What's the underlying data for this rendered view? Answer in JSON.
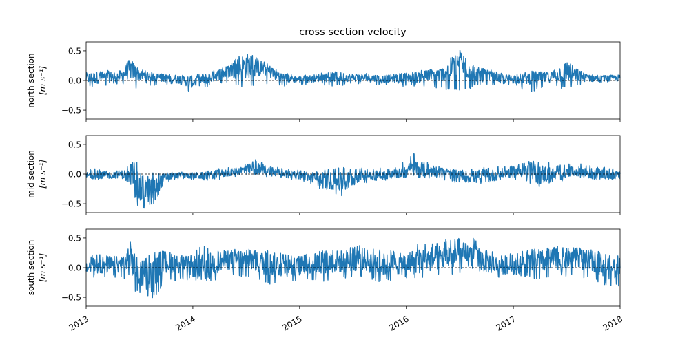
{
  "chart_data": [
    {
      "type": "line",
      "title": "cross section velocity",
      "ylabel": "north section",
      "ylabel_unit": "[m s⁻¹]",
      "ylim": [
        -0.65,
        0.65
      ],
      "yticks": [
        -0.5,
        0.0,
        0.5
      ],
      "ytick_labels": [
        "−0.5",
        "0.0",
        "0.5"
      ],
      "xlim": [
        "2013-01-01",
        "2018-01-01"
      ],
      "color": "#1f77b4",
      "zero_line": "dashed black",
      "series": [
        {
          "x": [
            "2013-01-01",
            "2013-03-01",
            "2013-05-01",
            "2013-06-01",
            "2013-07-01",
            "2013-09-01",
            "2013-11-01",
            "2014-01-01",
            "2014-03-01",
            "2014-05-01",
            "2014-07-01",
            "2014-09-01",
            "2014-11-01",
            "2015-01-01",
            "2015-03-01",
            "2015-05-01",
            "2015-07-01",
            "2015-09-01",
            "2015-11-01",
            "2016-01-01",
            "2016-03-01",
            "2016-05-01",
            "2016-07-01",
            "2016-09-01",
            "2016-11-01",
            "2017-01-01",
            "2017-03-01",
            "2017-05-01",
            "2017-07-01",
            "2017-09-01",
            "2017-11-01",
            "2018-01-01"
          ],
          "values": [
            0.04,
            0.05,
            0.08,
            0.2,
            0.1,
            0.05,
            0.03,
            -0.02,
            0.05,
            0.15,
            0.25,
            0.2,
            0.05,
            0.02,
            0.04,
            0.06,
            0.05,
            0.04,
            0.03,
            0.05,
            0.06,
            0.1,
            0.3,
            0.1,
            0.05,
            0.02,
            0.05,
            0.05,
            0.15,
            0.05,
            0.03,
            0.04
          ],
          "upper": [
            0.15,
            0.18,
            0.2,
            0.3,
            0.2,
            0.12,
            0.1,
            0.05,
            0.15,
            0.25,
            0.5,
            0.3,
            0.15,
            0.08,
            0.12,
            0.15,
            0.12,
            0.12,
            0.1,
            0.15,
            0.18,
            0.2,
            0.48,
            0.25,
            0.15,
            0.1,
            0.12,
            0.15,
            0.35,
            0.12,
            0.1,
            0.1
          ],
          "lower": [
            -0.12,
            -0.1,
            -0.05,
            -0.2,
            -0.1,
            -0.08,
            -0.1,
            -0.25,
            -0.1,
            -0.05,
            -0.15,
            -0.05,
            -0.1,
            -0.08,
            -0.06,
            -0.1,
            -0.08,
            -0.07,
            -0.08,
            -0.1,
            -0.12,
            -0.15,
            -0.2,
            -0.1,
            -0.08,
            -0.1,
            -0.2,
            -0.1,
            -0.15,
            -0.08,
            -0.07,
            -0.06
          ]
        }
      ]
    },
    {
      "type": "line",
      "title": "",
      "ylabel": "mid section",
      "ylabel_unit": "[m s⁻¹]",
      "ylim": [
        -0.65,
        0.65
      ],
      "yticks": [
        -0.5,
        0.0,
        0.5
      ],
      "ytick_labels": [
        "−0.5",
        "0.0",
        "0.5"
      ],
      "xlim": [
        "2013-01-01",
        "2018-01-01"
      ],
      "color": "#1f77b4",
      "zero_line": "dashed black",
      "series": [
        {
          "x": [
            "2013-01-01",
            "2013-03-01",
            "2013-05-01",
            "2013-06-01",
            "2013-07-01",
            "2013-08-15",
            "2013-10-01",
            "2013-12-01",
            "2014-02-01",
            "2014-04-01",
            "2014-06-01",
            "2014-08-01",
            "2014-10-01",
            "2014-12-01",
            "2015-02-01",
            "2015-04-01",
            "2015-06-01",
            "2015-08-01",
            "2015-10-01",
            "2015-12-01",
            "2016-02-01",
            "2016-04-01",
            "2016-06-01",
            "2016-08-01",
            "2016-10-01",
            "2016-12-01",
            "2017-02-01",
            "2017-04-01",
            "2017-06-01",
            "2017-08-01",
            "2017-10-01",
            "2017-12-01",
            "2018-01-01"
          ],
          "values": [
            -0.02,
            -0.02,
            0.0,
            -0.05,
            -0.25,
            -0.25,
            -0.05,
            -0.02,
            -0.03,
            0.0,
            0.05,
            0.1,
            0.05,
            0.0,
            -0.05,
            -0.1,
            -0.15,
            0.0,
            -0.02,
            0.0,
            0.1,
            0.05,
            0.0,
            -0.05,
            -0.05,
            0.02,
            0.05,
            0.0,
            -0.02,
            0.05,
            0.0,
            -0.02,
            -0.02
          ],
          "upper": [
            0.08,
            0.1,
            0.1,
            0.2,
            0.2,
            0.05,
            0.05,
            0.05,
            0.05,
            0.1,
            0.12,
            0.25,
            0.15,
            0.08,
            0.05,
            0.08,
            0.12,
            0.1,
            0.1,
            0.12,
            0.38,
            0.15,
            0.08,
            0.08,
            0.12,
            0.15,
            0.2,
            0.25,
            0.15,
            0.18,
            0.15,
            0.1,
            0.08
          ],
          "lower": [
            -0.08,
            -0.1,
            -0.08,
            -0.2,
            -0.6,
            -0.55,
            -0.15,
            -0.08,
            -0.12,
            -0.1,
            -0.05,
            -0.05,
            -0.05,
            -0.08,
            -0.15,
            -0.3,
            -0.38,
            -0.2,
            -0.12,
            -0.08,
            -0.05,
            -0.12,
            -0.15,
            -0.2,
            -0.2,
            -0.08,
            -0.1,
            -0.25,
            -0.15,
            -0.05,
            -0.12,
            -0.1,
            -0.08
          ]
        }
      ]
    },
    {
      "type": "line",
      "title": "",
      "ylabel": "south section",
      "ylabel_unit": "[m s⁻¹]",
      "ylim": [
        -0.65,
        0.65
      ],
      "yticks": [
        -0.5,
        0.0,
        0.5
      ],
      "ytick_labels": [
        "−0.5",
        "0.0",
        "0.5"
      ],
      "xlim": [
        "2013-01-01",
        "2018-01-01"
      ],
      "xtick_labels": [
        "2013",
        "2014",
        "2015",
        "2016",
        "2017",
        "2018"
      ],
      "color": "#1f77b4",
      "zero_line": "dashed black",
      "series": [
        {
          "x": [
            "2013-01-01",
            "2013-03-01",
            "2013-05-01",
            "2013-06-01",
            "2013-07-01",
            "2013-08-15",
            "2013-10-01",
            "2013-12-01",
            "2014-02-01",
            "2014-04-01",
            "2014-06-01",
            "2014-08-01",
            "2014-10-01",
            "2014-12-01",
            "2015-02-01",
            "2015-04-01",
            "2015-06-01",
            "2015-08-01",
            "2015-10-01",
            "2015-12-01",
            "2016-02-01",
            "2016-04-01",
            "2016-06-01",
            "2016-08-01",
            "2016-10-01",
            "2016-12-01",
            "2017-02-01",
            "2017-04-01",
            "2017-06-01",
            "2017-08-01",
            "2017-10-01",
            "2017-12-01",
            "2018-01-01"
          ],
          "values": [
            0.0,
            0.05,
            0.05,
            0.15,
            -0.1,
            -0.15,
            0.1,
            0.05,
            0.0,
            0.1,
            0.15,
            0.1,
            0.05,
            0.0,
            0.05,
            0.1,
            0.1,
            0.15,
            0.05,
            0.05,
            0.1,
            0.15,
            0.2,
            0.2,
            0.1,
            0.0,
            0.05,
            0.1,
            0.15,
            0.15,
            0.1,
            0.0,
            0.0
          ],
          "upper": [
            0.2,
            0.25,
            0.25,
            0.48,
            0.1,
            0.25,
            0.3,
            0.2,
            0.4,
            0.3,
            0.35,
            0.3,
            0.3,
            0.2,
            0.25,
            0.3,
            0.35,
            0.4,
            0.3,
            0.3,
            0.4,
            0.45,
            0.48,
            0.55,
            0.35,
            0.2,
            0.3,
            0.35,
            0.4,
            0.35,
            0.3,
            0.25,
            0.2
          ],
          "lower": [
            -0.15,
            -0.2,
            -0.15,
            -0.35,
            -0.45,
            -0.55,
            -0.25,
            -0.2,
            -0.25,
            -0.2,
            -0.15,
            -0.2,
            -0.3,
            -0.25,
            -0.2,
            -0.25,
            -0.2,
            -0.15,
            -0.25,
            -0.2,
            -0.2,
            -0.15,
            -0.15,
            -0.1,
            -0.2,
            -0.15,
            -0.15,
            -0.2,
            -0.15,
            -0.15,
            -0.2,
            -0.35,
            -0.3
          ]
        }
      ]
    }
  ]
}
